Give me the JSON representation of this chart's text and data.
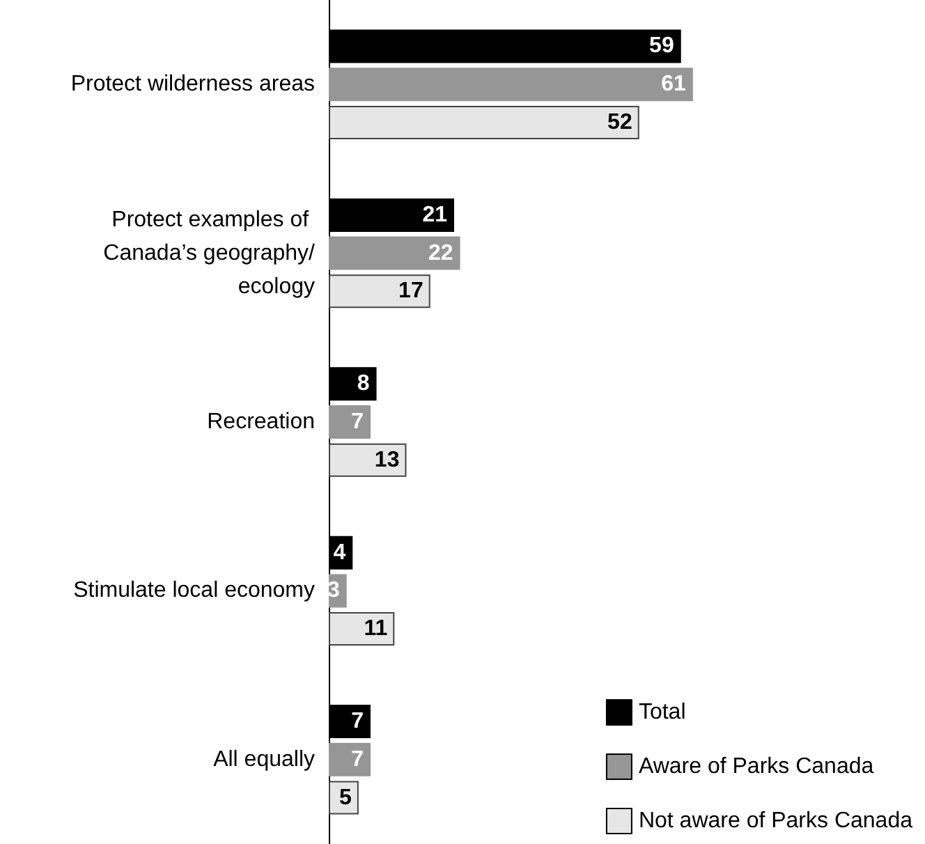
{
  "chart_data": {
    "type": "bar",
    "orientation": "horizontal",
    "data_labels": true,
    "legend": "bottom right",
    "grid": false,
    "categories": [
      "Protect wilderness areas",
      "Protect examples of Canada’s geography/ecology",
      "Recreation",
      "Stimulate local economy",
      "All equally"
    ],
    "series": [
      {
        "name": "Total",
        "color": "#000000",
        "values": [
          59,
          21,
          8,
          4,
          7
        ]
      },
      {
        "name": "Aware of Parks Canada",
        "color": "#969696",
        "values": [
          61,
          22,
          7,
          3,
          7
        ]
      },
      {
        "name": "Not aware of Parks Canada",
        "color": "#e6e6e6",
        "values": [
          52,
          17,
          13,
          11,
          5
        ]
      }
    ]
  }
}
